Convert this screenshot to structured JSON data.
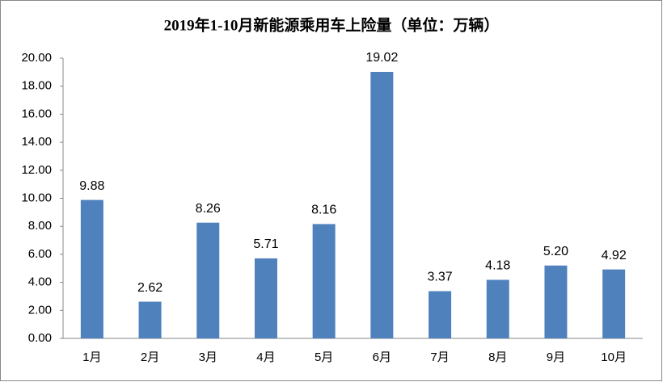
{
  "chart_data": {
    "type": "bar",
    "title": "2019年1-10月新能源乘用车上险量（单位：万辆）",
    "categories": [
      "1月",
      "2月",
      "3月",
      "4月",
      "5月",
      "6月",
      "7月",
      "8月",
      "9月",
      "10月"
    ],
    "values": [
      9.88,
      2.62,
      8.26,
      5.71,
      8.16,
      19.02,
      3.37,
      4.18,
      5.2,
      4.92
    ],
    "value_labels": [
      "9.88",
      "2.62",
      "8.26",
      "5.71",
      "8.16",
      "19.02",
      "3.37",
      "4.18",
      "5.20",
      "4.92"
    ],
    "color": "#4f81bd",
    "ylim": [
      0,
      20
    ],
    "yticks": [
      {
        "value": 0,
        "label": "0.00"
      },
      {
        "value": 2,
        "label": "2.00"
      },
      {
        "value": 4,
        "label": "4.00"
      },
      {
        "value": 6,
        "label": "6.00"
      },
      {
        "value": 8,
        "label": "8.00"
      },
      {
        "value": 10,
        "label": "10.00"
      },
      {
        "value": 12,
        "label": "12.00"
      },
      {
        "value": 14,
        "label": "14.00"
      },
      {
        "value": 16,
        "label": "16.00"
      },
      {
        "value": 18,
        "label": "18.00"
      },
      {
        "value": 20,
        "label": "20.00"
      }
    ],
    "grid": false
  }
}
